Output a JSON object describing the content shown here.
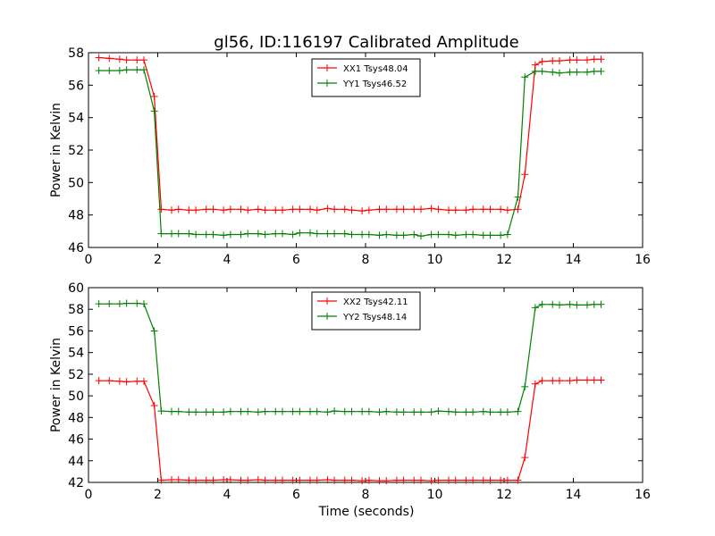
{
  "chart_data": [
    {
      "type": "line",
      "title": "gl56, ID:116197 Calibrated Amplitude",
      "xlabel": "",
      "ylabel": "Power in Kelvin",
      "xlim": [
        0,
        16
      ],
      "ylim": [
        46,
        58
      ],
      "xticks": [
        "0",
        "2",
        "4",
        "6",
        "8",
        "10",
        "12",
        "14",
        "16"
      ],
      "yticks": [
        "46",
        "48",
        "50",
        "52",
        "54",
        "56",
        "58"
      ],
      "legend_position": "top-center",
      "grid": false,
      "x": [
        0.3,
        0.6,
        0.9,
        1.1,
        1.4,
        1.6,
        1.9,
        2.1,
        2.4,
        2.6,
        2.9,
        3.1,
        3.4,
        3.6,
        3.9,
        4.1,
        4.4,
        4.6,
        4.9,
        5.1,
        5.4,
        5.6,
        5.9,
        6.1,
        6.4,
        6.6,
        6.9,
        7.1,
        7.4,
        7.6,
        7.9,
        8.1,
        8.4,
        8.6,
        8.9,
        9.1,
        9.4,
        9.6,
        9.9,
        10.1,
        10.4,
        10.6,
        10.9,
        11.1,
        11.4,
        11.6,
        11.9,
        12.1,
        12.4,
        12.6,
        12.9,
        13.1,
        13.4,
        13.6,
        13.9,
        14.1,
        14.4,
        14.6,
        14.8
      ],
      "series": [
        {
          "name": "XX1 Tsys48.04",
          "color": "#ff0000",
          "values": [
            57.7,
            57.65,
            57.6,
            57.55,
            57.55,
            57.55,
            55.3,
            48.35,
            48.3,
            48.35,
            48.3,
            48.3,
            48.35,
            48.35,
            48.3,
            48.35,
            48.35,
            48.3,
            48.35,
            48.3,
            48.3,
            48.3,
            48.35,
            48.35,
            48.35,
            48.3,
            48.4,
            48.35,
            48.35,
            48.3,
            48.25,
            48.3,
            48.35,
            48.35,
            48.35,
            48.35,
            48.35,
            48.35,
            48.4,
            48.35,
            48.3,
            48.3,
            48.3,
            48.35,
            48.35,
            48.35,
            48.35,
            48.3,
            48.35,
            50.5,
            57.25,
            57.45,
            57.5,
            57.5,
            57.55,
            57.55,
            57.55,
            57.6,
            57.6
          ]
        },
        {
          "name": "YY1 Tsys46.52",
          "color": "#008000",
          "values": [
            56.9,
            56.9,
            56.9,
            56.95,
            56.95,
            56.95,
            54.4,
            46.85,
            46.85,
            46.85,
            46.85,
            46.8,
            46.8,
            46.8,
            46.75,
            46.8,
            46.8,
            46.85,
            46.85,
            46.8,
            46.85,
            46.85,
            46.8,
            46.9,
            46.9,
            46.85,
            46.85,
            46.85,
            46.85,
            46.8,
            46.8,
            46.8,
            46.75,
            46.8,
            46.75,
            46.75,
            46.8,
            46.7,
            46.8,
            46.8,
            46.8,
            46.75,
            46.8,
            46.8,
            46.75,
            46.75,
            46.75,
            46.8,
            49.1,
            56.5,
            56.85,
            56.85,
            56.8,
            56.75,
            56.8,
            56.8,
            56.8,
            56.85,
            56.85
          ]
        }
      ]
    },
    {
      "type": "line",
      "title": "",
      "xlabel": "Time (seconds)",
      "ylabel": "Power in Kelvin",
      "xlim": [
        0,
        16
      ],
      "ylim": [
        42,
        60
      ],
      "xticks": [
        "0",
        "2",
        "4",
        "6",
        "8",
        "10",
        "12",
        "14",
        "16"
      ],
      "yticks": [
        "42",
        "44",
        "46",
        "48",
        "50",
        "52",
        "54",
        "56",
        "58",
        "60"
      ],
      "legend_position": "top-center",
      "grid": false,
      "x": [
        0.3,
        0.6,
        0.9,
        1.1,
        1.4,
        1.6,
        1.9,
        2.1,
        2.4,
        2.6,
        2.9,
        3.1,
        3.4,
        3.6,
        3.9,
        4.1,
        4.4,
        4.6,
        4.9,
        5.1,
        5.4,
        5.6,
        5.9,
        6.1,
        6.4,
        6.6,
        6.9,
        7.1,
        7.4,
        7.6,
        7.9,
        8.1,
        8.4,
        8.6,
        8.9,
        9.1,
        9.4,
        9.6,
        9.9,
        10.1,
        10.4,
        10.6,
        10.9,
        11.1,
        11.4,
        11.6,
        11.9,
        12.1,
        12.4,
        12.6,
        12.9,
        13.1,
        13.4,
        13.6,
        13.9,
        14.1,
        14.4,
        14.6,
        14.8
      ],
      "series": [
        {
          "name": "XX2 Tsys42.11",
          "color": "#ff0000",
          "values": [
            51.4,
            51.4,
            51.35,
            51.3,
            51.35,
            51.35,
            49.1,
            42.2,
            42.25,
            42.25,
            42.2,
            42.2,
            42.2,
            42.2,
            42.25,
            42.25,
            42.2,
            42.2,
            42.25,
            42.2,
            42.2,
            42.2,
            42.2,
            42.2,
            42.2,
            42.2,
            42.25,
            42.2,
            42.2,
            42.2,
            42.15,
            42.2,
            42.15,
            42.15,
            42.2,
            42.2,
            42.2,
            42.2,
            42.15,
            42.2,
            42.2,
            42.2,
            42.2,
            42.2,
            42.2,
            42.2,
            42.2,
            42.2,
            42.2,
            44.3,
            51.1,
            51.4,
            51.4,
            51.4,
            51.4,
            51.45,
            51.45,
            51.45,
            51.45
          ]
        },
        {
          "name": "YY2 Tsys48.14",
          "color": "#008000",
          "values": [
            58.5,
            58.5,
            58.5,
            58.55,
            58.55,
            58.5,
            56.0,
            48.6,
            48.55,
            48.55,
            48.5,
            48.5,
            48.5,
            48.5,
            48.5,
            48.55,
            48.55,
            48.55,
            48.5,
            48.55,
            48.55,
            48.55,
            48.55,
            48.55,
            48.55,
            48.55,
            48.5,
            48.6,
            48.55,
            48.55,
            48.55,
            48.55,
            48.5,
            48.55,
            48.5,
            48.5,
            48.5,
            48.5,
            48.5,
            48.6,
            48.55,
            48.5,
            48.5,
            48.5,
            48.55,
            48.5,
            48.5,
            48.5,
            48.55,
            50.85,
            58.15,
            58.45,
            58.45,
            58.4,
            58.45,
            58.4,
            58.4,
            58.45,
            58.45
          ]
        }
      ]
    }
  ]
}
